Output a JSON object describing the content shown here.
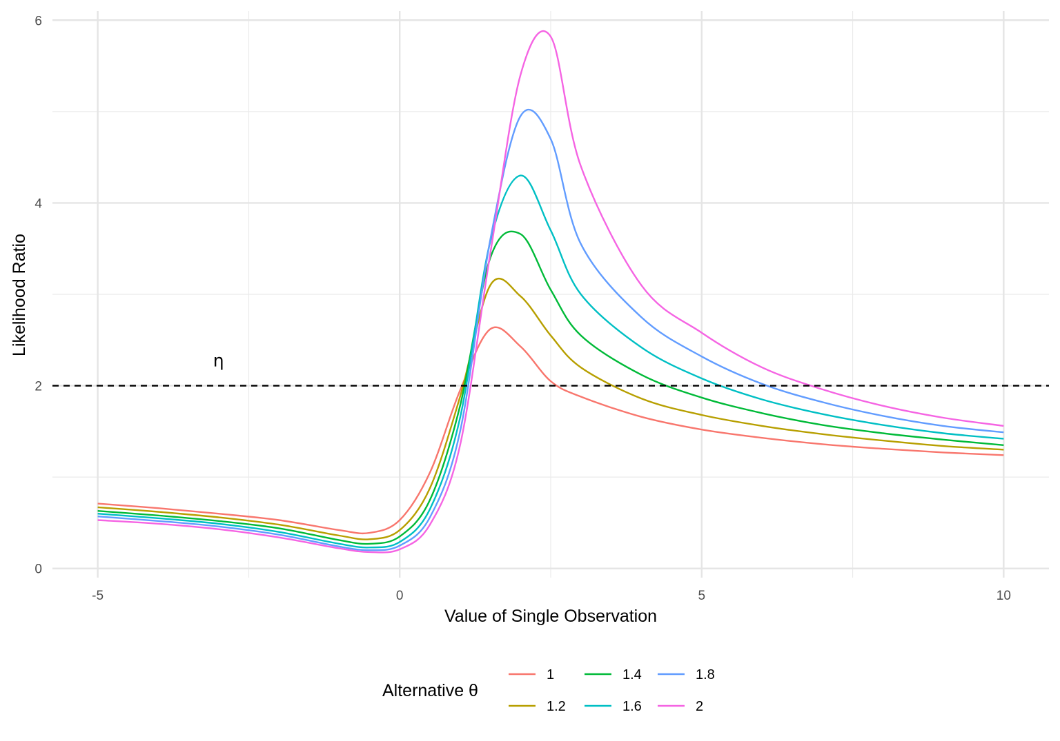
{
  "chart_data": {
    "type": "line",
    "xlabel": "Value of Single Observation",
    "ylabel": "Likelihood Ratio",
    "xlim": [
      -5.75,
      10.75
    ],
    "ylim": [
      -0.1,
      6.1
    ],
    "x_ticks": [
      -5,
      0,
      5,
      10
    ],
    "x_tick_labels": [
      "-5",
      "0",
      "5",
      "10"
    ],
    "y_ticks": [
      0,
      2,
      4,
      6
    ],
    "y_tick_labels": [
      "0",
      "2",
      "4",
      "6"
    ],
    "grid": true,
    "threshold": {
      "value": 2,
      "style": "dashed",
      "color": "#000000"
    },
    "annotation": {
      "text": "η",
      "x": -3,
      "y": 2.28
    },
    "legend": {
      "title": "Alternative θ",
      "placement": "bottom"
    },
    "series": [
      {
        "name": "1",
        "color": "#F8766D",
        "x": [
          -5,
          -4,
          -3,
          -2,
          -1,
          -0.5,
          0,
          0.5,
          1,
          1.5,
          2,
          2.5,
          3,
          4,
          5,
          6,
          7,
          8,
          9,
          10
        ],
        "y": [
          0.71,
          0.66,
          0.6,
          0.53,
          0.42,
          0.39,
          0.53,
          1.05,
          1.95,
          2.62,
          2.43,
          2.05,
          1.88,
          1.66,
          1.52,
          1.43,
          1.36,
          1.31,
          1.27,
          1.24
        ]
      },
      {
        "name": "1.2",
        "color": "#B79F00",
        "x": [
          -5,
          -4,
          -3,
          -2,
          -1,
          -0.5,
          0,
          0.5,
          1,
          1.5,
          2,
          2.5,
          3,
          4,
          5,
          6,
          7,
          8,
          9,
          10
        ],
        "y": [
          0.67,
          0.62,
          0.56,
          0.48,
          0.36,
          0.32,
          0.42,
          0.88,
          1.88,
          3.1,
          2.98,
          2.55,
          2.2,
          1.86,
          1.68,
          1.56,
          1.47,
          1.4,
          1.34,
          1.3
        ]
      },
      {
        "name": "1.4",
        "color": "#00BA38",
        "x": [
          -5,
          -4,
          -3,
          -2,
          -1,
          -0.5,
          0,
          0.5,
          1,
          1.5,
          2,
          2.5,
          3,
          4,
          5,
          6,
          7,
          8,
          9,
          10
        ],
        "y": [
          0.63,
          0.58,
          0.52,
          0.44,
          0.31,
          0.27,
          0.35,
          0.75,
          1.78,
          3.4,
          3.66,
          3.05,
          2.55,
          2.12,
          1.87,
          1.7,
          1.57,
          1.48,
          1.41,
          1.35
        ]
      },
      {
        "name": "1.6",
        "color": "#00BFC4",
        "x": [
          -5,
          -4,
          -3,
          -2,
          -1,
          -0.5,
          0,
          0.5,
          1,
          1.5,
          2,
          2.5,
          3,
          4,
          5,
          6,
          7,
          8,
          9,
          10
        ],
        "y": [
          0.6,
          0.55,
          0.49,
          0.4,
          0.27,
          0.23,
          0.29,
          0.65,
          1.65,
          3.58,
          4.3,
          3.7,
          3.0,
          2.42,
          2.08,
          1.85,
          1.69,
          1.57,
          1.48,
          1.42
        ]
      },
      {
        "name": "1.8",
        "color": "#619CFF",
        "x": [
          -5,
          -4,
          -3,
          -2,
          -1,
          -0.5,
          0,
          0.5,
          1,
          1.5,
          2,
          2.5,
          3,
          4,
          5,
          6,
          7,
          8,
          9,
          10
        ],
        "y": [
          0.57,
          0.52,
          0.46,
          0.37,
          0.24,
          0.2,
          0.25,
          0.56,
          1.5,
          3.6,
          4.95,
          4.7,
          3.55,
          2.75,
          2.32,
          2.02,
          1.82,
          1.67,
          1.56,
          1.49
        ]
      },
      {
        "name": "2",
        "color": "#F564E3",
        "x": [
          -5,
          -4,
          -3,
          -2,
          -1,
          -0.5,
          0,
          0.5,
          1,
          1.5,
          2,
          2.5,
          3,
          4,
          5,
          6,
          7,
          8,
          9,
          10
        ],
        "y": [
          0.53,
          0.49,
          0.43,
          0.34,
          0.22,
          0.18,
          0.21,
          0.48,
          1.35,
          3.45,
          5.4,
          5.82,
          4.4,
          3.1,
          2.58,
          2.2,
          1.96,
          1.78,
          1.65,
          1.56
        ]
      }
    ]
  }
}
